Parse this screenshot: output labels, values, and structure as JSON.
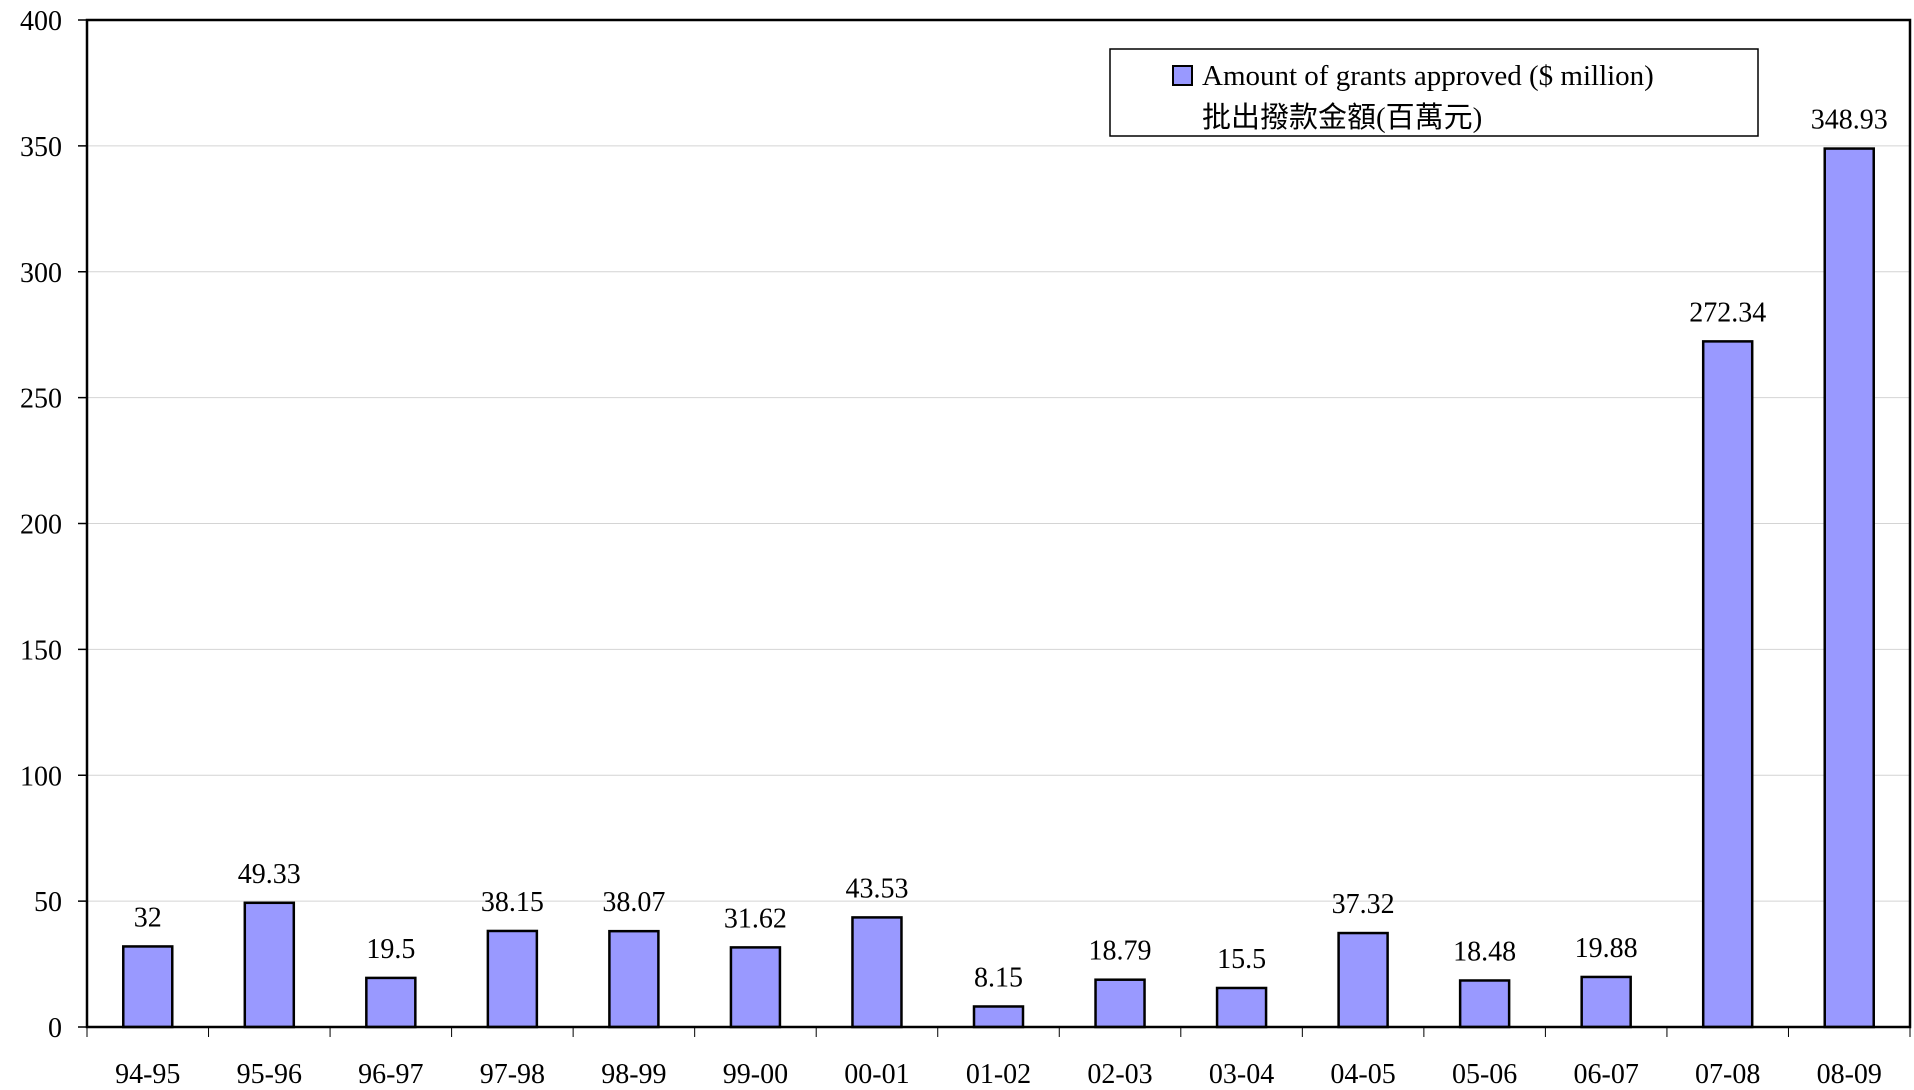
{
  "chart_data": {
    "type": "bar",
    "categories": [
      "94-95",
      "95-96",
      "96-97",
      "97-98",
      "98-99",
      "99-00",
      "00-01",
      "01-02",
      "02-03",
      "03-04",
      "04-05",
      "05-06",
      "06-07",
      "07-08",
      "08-09"
    ],
    "series": [
      {
        "name": "Amount of grants approved ($ million)",
        "name_zh": "批出撥款金額(百萬元)",
        "values": [
          32,
          49.33,
          19.5,
          38.15,
          38.07,
          31.62,
          43.53,
          8.15,
          18.79,
          15.5,
          37.32,
          18.48,
          19.88,
          272.34,
          348.93
        ],
        "data_labels": [
          "32",
          "49.33",
          "19.5",
          "38.15",
          "38.07",
          "31.62",
          "43.53",
          "8.15",
          "18.79",
          "15.5",
          "37.32",
          "18.48",
          "19.88",
          "272.34",
          "348.93"
        ],
        "color": "#9999ff"
      }
    ],
    "ylim": [
      0,
      400
    ],
    "yticks": [
      0,
      50,
      100,
      150,
      200,
      250,
      300,
      350,
      400
    ],
    "ytick_labels": [
      "0",
      "50",
      "100",
      "150",
      "200",
      "250",
      "300",
      "350",
      "400"
    ],
    "grid": true,
    "legend_position": "top-right",
    "title": "",
    "xlabel": "",
    "ylabel": ""
  }
}
